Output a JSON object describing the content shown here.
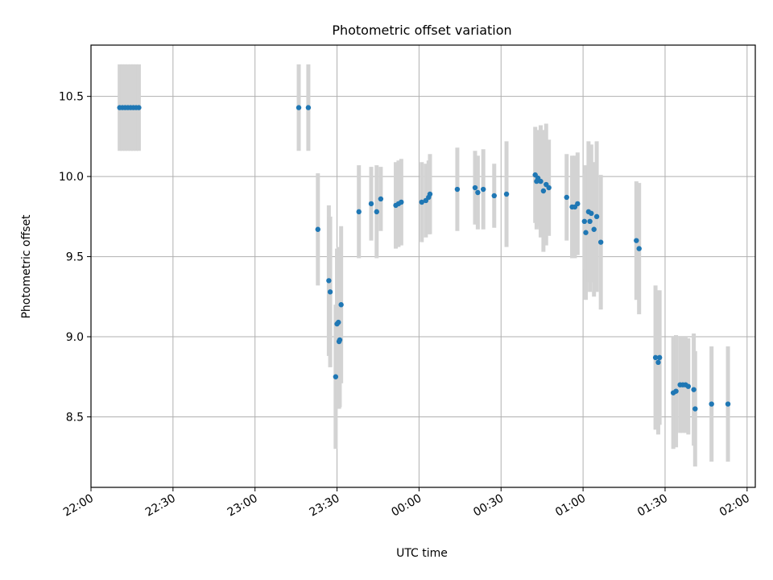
{
  "chart_data": {
    "type": "scatter",
    "title": "Photometric offset variation",
    "xlabel": "UTC time",
    "ylabel": "Photometric offset",
    "xlim": [
      "22:00",
      "02:03"
    ],
    "ylim": [
      8.06,
      10.82
    ],
    "x_ticks": [
      "22:00",
      "22:30",
      "23:00",
      "23:30",
      "00:00",
      "00:30",
      "01:00",
      "01:30",
      "02:00"
    ],
    "y_ticks": [
      8.5,
      9.0,
      9.5,
      10.0,
      10.5
    ],
    "grid": true,
    "colors": {
      "points": "#1f77b4",
      "errorbars": "#d3d3d3",
      "grid": "#b0b0b0"
    },
    "series": [
      {
        "points": [
          {
            "x": "22:10:30",
            "y": 10.43,
            "err": 0.27
          },
          {
            "x": "22:11:30",
            "y": 10.43,
            "err": 0.27
          },
          {
            "x": "22:12:30",
            "y": 10.43,
            "err": 0.27
          },
          {
            "x": "22:13:30",
            "y": 10.43,
            "err": 0.27
          },
          {
            "x": "22:14:30",
            "y": 10.43,
            "err": 0.27
          },
          {
            "x": "22:15:30",
            "y": 10.43,
            "err": 0.27
          },
          {
            "x": "22:16:30",
            "y": 10.43,
            "err": 0.27
          },
          {
            "x": "22:17:30",
            "y": 10.43,
            "err": 0.27
          },
          {
            "x": "23:16:00",
            "y": 10.43,
            "err": 0.27
          },
          {
            "x": "23:19:30",
            "y": 10.43,
            "err": 0.27
          },
          {
            "x": "23:23:00",
            "y": 9.67,
            "err": 0.35
          },
          {
            "x": "23:27:00",
            "y": 9.35,
            "err": 0.47
          },
          {
            "x": "23:27:30",
            "y": 9.28,
            "err": 0.47
          },
          {
            "x": "23:29:30",
            "y": 8.75,
            "err": 0.45
          },
          {
            "x": "23:30:00",
            "y": 9.08,
            "err": 0.47
          },
          {
            "x": "23:30:30",
            "y": 9.09,
            "err": 0.47
          },
          {
            "x": "23:30:45",
            "y": 8.97,
            "err": 0.42
          },
          {
            "x": "23:31:00",
            "y": 8.98,
            "err": 0.42
          },
          {
            "x": "23:31:30",
            "y": 9.2,
            "err": 0.49
          },
          {
            "x": "23:38:00",
            "y": 9.78,
            "err": 0.29
          },
          {
            "x": "23:42:30",
            "y": 9.83,
            "err": 0.23
          },
          {
            "x": "23:44:30",
            "y": 9.78,
            "err": 0.29
          },
          {
            "x": "23:46:00",
            "y": 9.86,
            "err": 0.2
          },
          {
            "x": "23:51:30",
            "y": 9.82,
            "err": 0.27
          },
          {
            "x": "23:52:30",
            "y": 9.83,
            "err": 0.27
          },
          {
            "x": "23:53:30",
            "y": 9.84,
            "err": 0.27
          },
          {
            "x": "00:01:00",
            "y": 9.84,
            "err": 0.25
          },
          {
            "x": "00:02:30",
            "y": 9.85,
            "err": 0.23
          },
          {
            "x": "00:03:30",
            "y": 9.87,
            "err": 0.23
          },
          {
            "x": "00:04:00",
            "y": 9.89,
            "err": 0.25
          },
          {
            "x": "00:14:00",
            "y": 9.92,
            "err": 0.26
          },
          {
            "x": "00:20:30",
            "y": 9.93,
            "err": 0.23
          },
          {
            "x": "00:21:30",
            "y": 9.9,
            "err": 0.23
          },
          {
            "x": "00:23:30",
            "y": 9.92,
            "err": 0.25
          },
          {
            "x": "00:27:30",
            "y": 9.88,
            "err": 0.2
          },
          {
            "x": "00:32:00",
            "y": 9.89,
            "err": 0.33
          },
          {
            "x": "00:42:30",
            "y": 10.01,
            "err": 0.3
          },
          {
            "x": "00:43:00",
            "y": 9.97,
            "err": 0.3
          },
          {
            "x": "00:43:30",
            "y": 9.99,
            "err": 0.3
          },
          {
            "x": "00:44:30",
            "y": 9.97,
            "err": 0.35
          },
          {
            "x": "00:45:30",
            "y": 9.91,
            "err": 0.38
          },
          {
            "x": "00:46:30",
            "y": 9.95,
            "err": 0.38
          },
          {
            "x": "00:47:30",
            "y": 9.93,
            "err": 0.3
          },
          {
            "x": "00:54:00",
            "y": 9.87,
            "err": 0.27
          },
          {
            "x": "00:56:00",
            "y": 9.81,
            "err": 0.32
          },
          {
            "x": "00:57:00",
            "y": 9.81,
            "err": 0.32
          },
          {
            "x": "00:58:00",
            "y": 9.83,
            "err": 0.32
          },
          {
            "x": "01:00:30",
            "y": 9.72,
            "err": 0.3
          },
          {
            "x": "01:01:00",
            "y": 9.65,
            "err": 0.42
          },
          {
            "x": "01:02:00",
            "y": 9.78,
            "err": 0.44
          },
          {
            "x": "01:02:30",
            "y": 9.72,
            "err": 0.44
          },
          {
            "x": "01:03:00",
            "y": 9.77,
            "err": 0.43
          },
          {
            "x": "01:04:00",
            "y": 9.67,
            "err": 0.42
          },
          {
            "x": "01:05:00",
            "y": 9.75,
            "err": 0.47
          },
          {
            "x": "01:06:30",
            "y": 9.59,
            "err": 0.42
          },
          {
            "x": "01:19:30",
            "y": 9.6,
            "err": 0.37
          },
          {
            "x": "01:20:30",
            "y": 9.55,
            "err": 0.41
          },
          {
            "x": "01:26:30",
            "y": 8.87,
            "err": 0.45
          },
          {
            "x": "01:27:30",
            "y": 8.84,
            "err": 0.45
          },
          {
            "x": "01:28:00",
            "y": 8.87,
            "err": 0.42
          },
          {
            "x": "01:33:00",
            "y": 8.65,
            "err": 0.35
          },
          {
            "x": "01:34:00",
            "y": 8.66,
            "err": 0.35
          },
          {
            "x": "01:35:30",
            "y": 8.7,
            "err": 0.3
          },
          {
            "x": "01:36:30",
            "y": 8.7,
            "err": 0.3
          },
          {
            "x": "01:37:30",
            "y": 8.7,
            "err": 0.3
          },
          {
            "x": "01:38:30",
            "y": 8.69,
            "err": 0.3
          },
          {
            "x": "01:40:30",
            "y": 8.67,
            "err": 0.35
          },
          {
            "x": "01:41:00",
            "y": 8.55,
            "err": 0.36
          },
          {
            "x": "01:47:00",
            "y": 8.58,
            "err": 0.36
          },
          {
            "x": "01:53:00",
            "y": 8.58,
            "err": 0.36
          }
        ]
      }
    ]
  }
}
